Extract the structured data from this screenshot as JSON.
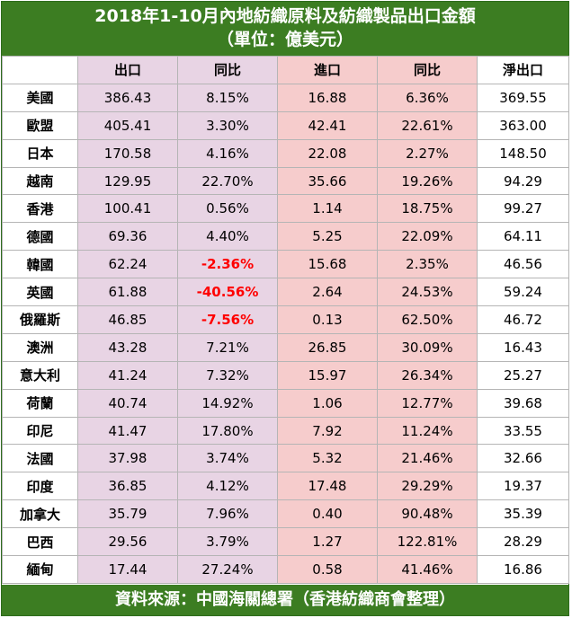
{
  "title": {
    "line1": "2018年1-10月內地紡織原料及紡織製品出口金額",
    "line2": "（單位：億美元）"
  },
  "columns": [
    "",
    "出口",
    "同比",
    "進口",
    "同比",
    "淨出口"
  ],
  "rows": [
    {
      "region": "美國",
      "export": "386.43",
      "export_yoy": "8.15%",
      "import": "16.88",
      "import_yoy": "6.36%",
      "net": "369.55",
      "export_yoy_negative": false
    },
    {
      "region": "歐盟",
      "export": "405.41",
      "export_yoy": "3.30%",
      "import": "42.41",
      "import_yoy": "22.61%",
      "net": "363.00",
      "export_yoy_negative": false
    },
    {
      "region": "日本",
      "export": "170.58",
      "export_yoy": "4.16%",
      "import": "22.08",
      "import_yoy": "2.27%",
      "net": "148.50",
      "export_yoy_negative": false
    },
    {
      "region": "越南",
      "export": "129.95",
      "export_yoy": "22.70%",
      "import": "35.66",
      "import_yoy": "19.26%",
      "net": "94.29",
      "export_yoy_negative": false
    },
    {
      "region": "香港",
      "export": "100.41",
      "export_yoy": "0.56%",
      "import": "1.14",
      "import_yoy": "18.75%",
      "net": "99.27",
      "export_yoy_negative": false
    },
    {
      "region": "德國",
      "export": "69.36",
      "export_yoy": "4.40%",
      "import": "5.25",
      "import_yoy": "22.09%",
      "net": "64.11",
      "export_yoy_negative": false
    },
    {
      "region": "韓國",
      "export": "62.24",
      "export_yoy": "-2.36%",
      "import": "15.68",
      "import_yoy": "2.35%",
      "net": "46.56",
      "export_yoy_negative": true
    },
    {
      "region": "英國",
      "export": "61.88",
      "export_yoy": "-40.56%",
      "import": "2.64",
      "import_yoy": "24.53%",
      "net": "59.24",
      "export_yoy_negative": true
    },
    {
      "region": "俄羅斯",
      "export": "46.85",
      "export_yoy": "-7.56%",
      "import": "0.13",
      "import_yoy": "62.50%",
      "net": "46.72",
      "export_yoy_negative": true
    },
    {
      "region": "澳洲",
      "export": "43.28",
      "export_yoy": "7.21%",
      "import": "26.85",
      "import_yoy": "30.09%",
      "net": "16.43",
      "export_yoy_negative": false
    },
    {
      "region": "意大利",
      "export": "41.24",
      "export_yoy": "7.32%",
      "import": "15.97",
      "import_yoy": "26.34%",
      "net": "25.27",
      "export_yoy_negative": false
    },
    {
      "region": "荷蘭",
      "export": "40.74",
      "export_yoy": "14.92%",
      "import": "1.06",
      "import_yoy": "12.77%",
      "net": "39.68",
      "export_yoy_negative": false
    },
    {
      "region": "印尼",
      "export": "41.47",
      "export_yoy": "17.80%",
      "import": "7.92",
      "import_yoy": "11.24%",
      "net": "33.55",
      "export_yoy_negative": false
    },
    {
      "region": "法國",
      "export": "37.98",
      "export_yoy": "3.74%",
      "import": "5.32",
      "import_yoy": "21.46%",
      "net": "32.66",
      "export_yoy_negative": false
    },
    {
      "region": "印度",
      "export": "36.85",
      "export_yoy": "4.12%",
      "import": "17.48",
      "import_yoy": "29.29%",
      "net": "19.37",
      "export_yoy_negative": false
    },
    {
      "region": "加拿大",
      "export": "35.79",
      "export_yoy": "7.96%",
      "import": "0.40",
      "import_yoy": "90.48%",
      "net": "35.39",
      "export_yoy_negative": false
    },
    {
      "region": "巴西",
      "export": "29.56",
      "export_yoy": "3.79%",
      "import": "1.27",
      "import_yoy": "122.81%",
      "net": "28.29",
      "export_yoy_negative": false
    },
    {
      "region": "緬甸",
      "export": "17.44",
      "export_yoy": "27.24%",
      "import": "0.58",
      "import_yoy": "41.46%",
      "net": "16.86",
      "export_yoy_negative": false
    }
  ],
  "footer": "資料來源：中國海關總署（香港紡織商會整理）",
  "colors": {
    "header_green": "#3c7d22",
    "export_bg": "#e8d4e4",
    "import_bg": "#f6cccc",
    "negative_text": "#ff0000"
  }
}
